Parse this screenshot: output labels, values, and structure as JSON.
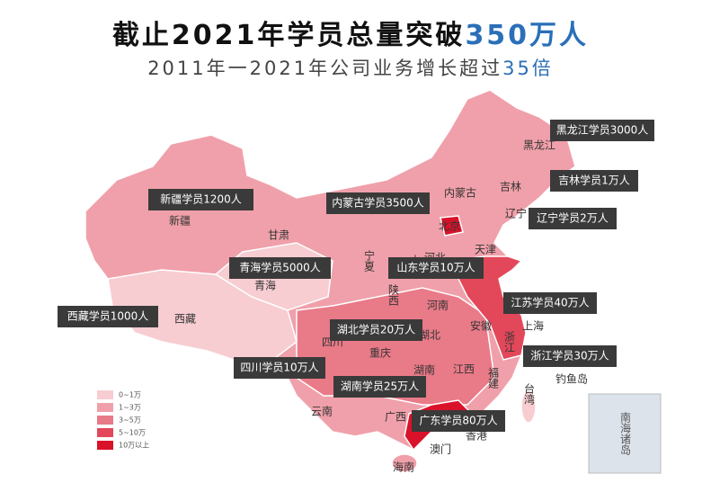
{
  "title": {
    "main": "截止2021年学员总量突破",
    "highlight": "350万人"
  },
  "subtitle": {
    "main": "2011年一2021年公司业务增长超过",
    "highlight": "35倍"
  },
  "callouts": [
    "黑龙江学员3000人",
    "吉林学员1万人",
    "辽宁学员2万人",
    "内蒙古学员3500人",
    "新疆学员1200人",
    "青海学员5000人",
    "山东学员10万人",
    "西藏学员1000人",
    "江苏学员40万人",
    "湖北学员20万人",
    "四川学员10万人",
    "浙江学员30万人",
    "湖南学员25万人",
    "广东学员80万人"
  ],
  "province_labels": [
    "黑龙江",
    "吉林",
    "辽宁",
    "内蒙古",
    "新疆",
    "甘肃",
    "北京",
    "天津",
    "河北",
    "山",
    "宁夏",
    "青海",
    "西藏",
    "陕西",
    "河南",
    "四川",
    "重庆",
    "湖北",
    "安徽",
    "上海",
    "浙江",
    "湖南",
    "江西",
    "福建",
    "台湾",
    "云南",
    "广西",
    "香港",
    "澳门",
    "海南",
    "钓鱼岛"
  ],
  "legend": [
    {
      "label": "0~1万",
      "color": "#f7cdd2"
    },
    {
      "label": "1~3万",
      "color": "#f0a0aa"
    },
    {
      "label": "3~5万",
      "color": "#e97a88"
    },
    {
      "label": "5~10万",
      "color": "#e2485a"
    },
    {
      "label": "10万以上",
      "color": "#d9122a"
    }
  ],
  "inset": "南海诸岛"
}
